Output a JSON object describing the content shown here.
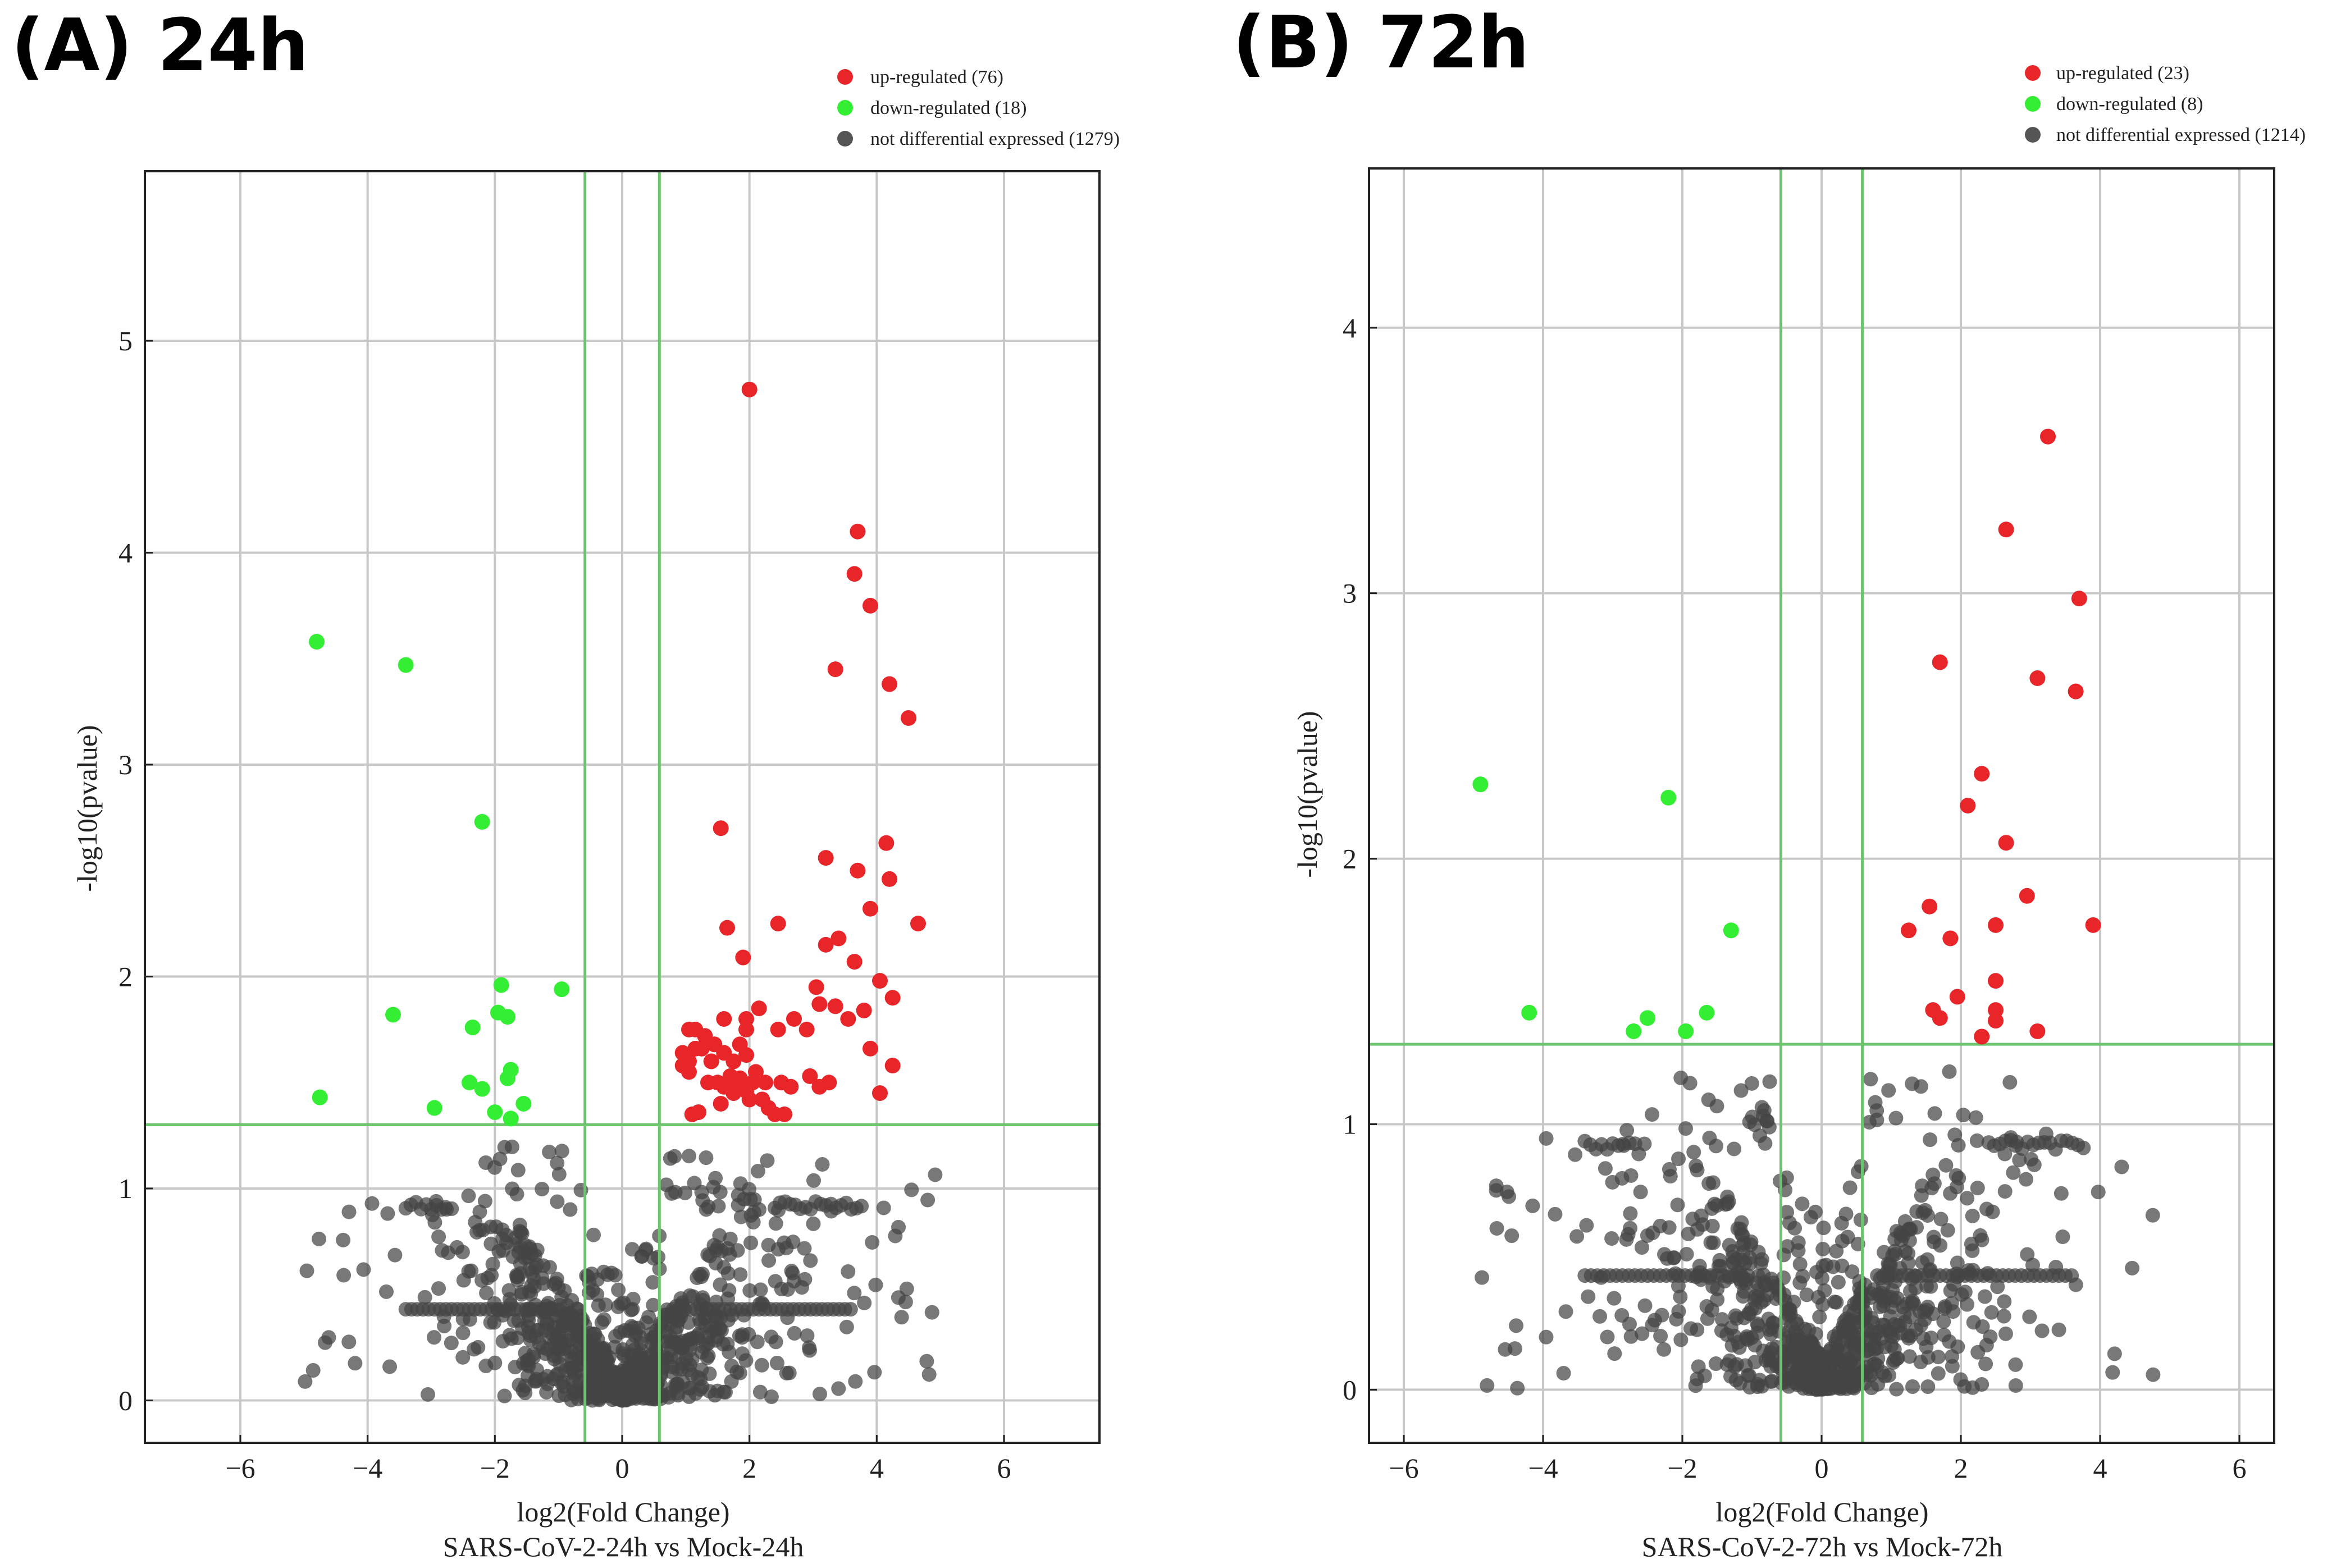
{
  "chart_data": [
    {
      "type": "scatter",
      "panel_label": "(A) 24h",
      "xlabel": "log2(Fold Change)",
      "subtitle": "SARS-CoV-2-24h vs Mock-24h",
      "ylabel": "-log10(pvalue)",
      "xlim": [
        -7.5,
        7.5
      ],
      "ylim": [
        -0.2,
        5.8
      ],
      "xticks": [
        -6,
        -4,
        -2,
        0,
        2,
        4,
        6
      ],
      "xtick_labels": [
        "−6",
        "−4",
        "−2",
        "0",
        "2",
        "4",
        "6"
      ],
      "yticks": [
        0,
        1,
        2,
        3,
        4,
        5
      ],
      "ytick_labels": [
        "0",
        "1",
        "2",
        "3",
        "4",
        "5"
      ],
      "fc_threshold": 0.585,
      "p_threshold": 1.301,
      "grid": true,
      "legend_position": "top-right, above plot",
      "legend": [
        {
          "label": "up-regulated (76)",
          "color": "#e8262a"
        },
        {
          "label": "down-regulated (18)",
          "color": "#33ee33"
        },
        {
          "label": "not differential expressed (1279)",
          "color": "#444444"
        }
      ],
      "series": [
        {
          "name": "up-regulated",
          "color": "#e8262a",
          "points": [
            [
              2.0,
              4.77
            ],
            [
              3.7,
              4.1
            ],
            [
              3.65,
              3.9
            ],
            [
              3.9,
              3.75
            ],
            [
              3.35,
              3.45
            ],
            [
              4.2,
              3.38
            ],
            [
              4.5,
              3.22
            ],
            [
              1.55,
              2.7
            ],
            [
              4.15,
              2.63
            ],
            [
              3.2,
              2.56
            ],
            [
              3.7,
              2.5
            ],
            [
              4.2,
              2.46
            ],
            [
              3.9,
              2.32
            ],
            [
              1.65,
              2.23
            ],
            [
              2.45,
              2.25
            ],
            [
              4.65,
              2.25
            ],
            [
              3.2,
              2.15
            ],
            [
              3.4,
              2.18
            ],
            [
              3.65,
              2.07
            ],
            [
              1.9,
              2.09
            ],
            [
              4.05,
              1.98
            ],
            [
              3.05,
              1.95
            ],
            [
              4.25,
              1.9
            ],
            [
              3.1,
              1.87
            ],
            [
              3.35,
              1.86
            ],
            [
              2.15,
              1.85
            ],
            [
              3.8,
              1.84
            ],
            [
              1.6,
              1.8
            ],
            [
              1.95,
              1.8
            ],
            [
              2.7,
              1.8
            ],
            [
              3.55,
              1.8
            ],
            [
              2.45,
              1.75
            ],
            [
              2.9,
              1.75
            ],
            [
              1.05,
              1.75
            ],
            [
              1.15,
              1.75
            ],
            [
              1.95,
              1.75
            ],
            [
              1.3,
              1.72
            ],
            [
              1.45,
              1.68
            ],
            [
              1.85,
              1.68
            ],
            [
              1.15,
              1.66
            ],
            [
              1.25,
              1.66
            ],
            [
              3.9,
              1.66
            ],
            [
              0.95,
              1.64
            ],
            [
              1.6,
              1.64
            ],
            [
              1.95,
              1.63
            ],
            [
              1.05,
              1.6
            ],
            [
              1.4,
              1.6
            ],
            [
              1.75,
              1.6
            ],
            [
              4.25,
              1.58
            ],
            [
              0.95,
              1.58
            ],
            [
              1.05,
              1.55
            ],
            [
              2.1,
              1.55
            ],
            [
              1.7,
              1.53
            ],
            [
              2.25,
              1.5
            ],
            [
              2.95,
              1.53
            ],
            [
              3.25,
              1.5
            ],
            [
              1.5,
              1.5
            ],
            [
              1.85,
              1.52
            ],
            [
              2.05,
              1.5
            ],
            [
              3.1,
              1.48
            ],
            [
              1.35,
              1.5
            ],
            [
              1.6,
              1.48
            ],
            [
              1.8,
              1.5
            ],
            [
              2.65,
              1.48
            ],
            [
              1.95,
              1.46
            ],
            [
              4.05,
              1.45
            ],
            [
              2.2,
              1.42
            ],
            [
              1.1,
              1.35
            ],
            [
              1.55,
              1.4
            ],
            [
              2.3,
              1.38
            ],
            [
              1.2,
              1.36
            ],
            [
              2.4,
              1.35
            ],
            [
              2.55,
              1.35
            ],
            [
              2.0,
              1.42
            ],
            [
              1.75,
              1.45
            ],
            [
              2.5,
              1.5
            ]
          ]
        },
        {
          "name": "down-regulated",
          "color": "#33ee33",
          "points": [
            [
              -4.8,
              3.58
            ],
            [
              -3.4,
              3.47
            ],
            [
              -2.2,
              2.73
            ],
            [
              -1.9,
              1.96
            ],
            [
              -0.95,
              1.94
            ],
            [
              -3.6,
              1.82
            ],
            [
              -1.95,
              1.83
            ],
            [
              -1.8,
              1.81
            ],
            [
              -2.35,
              1.76
            ],
            [
              -1.75,
              1.56
            ],
            [
              -1.8,
              1.52
            ],
            [
              -2.4,
              1.5
            ],
            [
              -2.2,
              1.47
            ],
            [
              -4.75,
              1.43
            ],
            [
              -1.55,
              1.4
            ],
            [
              -2.95,
              1.38
            ],
            [
              -1.75,
              1.33
            ],
            [
              -2.0,
              1.36
            ]
          ]
        },
        {
          "name": "not differential expressed",
          "color": "#444444",
          "points": [],
          "note": "1279 genes forming a V-shaped cloud centred at (0, 0) below the p-value threshold"
        }
      ]
    },
    {
      "type": "scatter",
      "panel_label": "(B) 72h",
      "xlabel": "log2(Fold Change)",
      "subtitle": "SARS-CoV-2-72h vs Mock-72h",
      "ylabel": "-log10(pvalue)",
      "xlim": [
        -6.5,
        6.5
      ],
      "ylim": [
        -0.2,
        4.6
      ],
      "xticks": [
        -6,
        -4,
        -2,
        0,
        2,
        4,
        6
      ],
      "xtick_labels": [
        "−6",
        "−4",
        "−2",
        "0",
        "2",
        "4",
        "6"
      ],
      "yticks": [
        0,
        1,
        2,
        3,
        4
      ],
      "ytick_labels": [
        "0",
        "1",
        "2",
        "3",
        "4"
      ],
      "fc_threshold": 0.585,
      "p_threshold": 1.301,
      "grid": true,
      "legend_position": "top-right, above plot",
      "legend": [
        {
          "label": "up-regulated (23)",
          "color": "#e8262a"
        },
        {
          "label": "down-regulated (8)",
          "color": "#33ee33"
        },
        {
          "label": "not differential expressed (1214)",
          "color": "#444444"
        }
      ],
      "series": [
        {
          "name": "up-regulated",
          "color": "#e8262a",
          "points": [
            [
              3.25,
              3.59
            ],
            [
              2.65,
              3.24
            ],
            [
              3.7,
              2.98
            ],
            [
              1.7,
              2.74
            ],
            [
              3.1,
              2.68
            ],
            [
              3.65,
              2.63
            ],
            [
              2.3,
              2.32
            ],
            [
              2.1,
              2.2
            ],
            [
              2.65,
              2.06
            ],
            [
              2.95,
              1.86
            ],
            [
              1.55,
              1.82
            ],
            [
              2.5,
              1.75
            ],
            [
              3.9,
              1.75
            ],
            [
              1.25,
              1.73
            ],
            [
              1.85,
              1.7
            ],
            [
              2.5,
              1.54
            ],
            [
              1.95,
              1.48
            ],
            [
              1.6,
              1.43
            ],
            [
              2.5,
              1.43
            ],
            [
              1.7,
              1.4
            ],
            [
              2.5,
              1.39
            ],
            [
              2.3,
              1.33
            ],
            [
              3.1,
              1.35
            ]
          ]
        },
        {
          "name": "down-regulated",
          "color": "#33ee33",
          "points": [
            [
              -4.9,
              2.28
            ],
            [
              -2.2,
              2.23
            ],
            [
              -1.3,
              1.73
            ],
            [
              -4.2,
              1.42
            ],
            [
              -1.65,
              1.42
            ],
            [
              -2.7,
              1.35
            ],
            [
              -1.95,
              1.35
            ],
            [
              -2.5,
              1.4
            ]
          ]
        },
        {
          "name": "not differential expressed",
          "color": "#444444",
          "points": [],
          "note": "1214 genes forming a V-shaped cloud centred at (0, 0) below the p-value threshold"
        }
      ]
    }
  ]
}
